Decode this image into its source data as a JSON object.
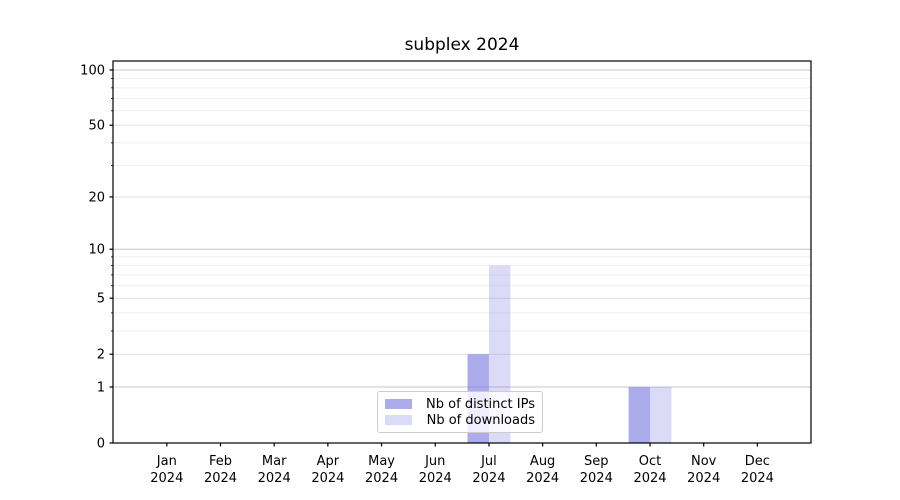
{
  "title": "subplex 2024",
  "chart_data": {
    "type": "bar",
    "title": "subplex 2024",
    "x_tick_months": [
      "Jan",
      "Feb",
      "Mar",
      "Apr",
      "May",
      "Jun",
      "Jul",
      "Aug",
      "Sep",
      "Oct",
      "Nov",
      "Dec"
    ],
    "x_tick_year": "2024",
    "series": [
      {
        "name": "Nb of distinct IPs",
        "color": "rgba(123,123,227,0.63)",
        "values": [
          0,
          0,
          0,
          0,
          0,
          0,
          2,
          0,
          0,
          1,
          0,
          0
        ]
      },
      {
        "name": "Nb of downloads",
        "color": "rgba(123,123,227,0.27)",
        "values": [
          0,
          0,
          0,
          0,
          0,
          0,
          8,
          0,
          0,
          1,
          0,
          0
        ]
      }
    ],
    "y_axis": {
      "scale": "log1p",
      "tick_values": [
        0,
        1,
        2,
        5,
        10,
        20,
        50,
        100
      ],
      "tick_labels": [
        "0",
        "1",
        "2",
        "5",
        "10",
        "20",
        "50",
        "100"
      ],
      "minor_values": [
        3,
        4,
        6,
        7,
        8,
        9,
        30,
        40,
        60,
        70,
        80,
        90
      ],
      "ylim": [
        0,
        113
      ]
    },
    "grid": true,
    "legend_position": "lower center"
  },
  "colors": {
    "bar_distinct_ips": "rgba(123,123,227,0.63)",
    "bar_downloads": "rgba(123,123,227,0.27)",
    "axis": "#000000",
    "grid_major": "#c6c6c6",
    "grid_labeled": "#e0e0e0",
    "grid_minor": "#efefef"
  }
}
